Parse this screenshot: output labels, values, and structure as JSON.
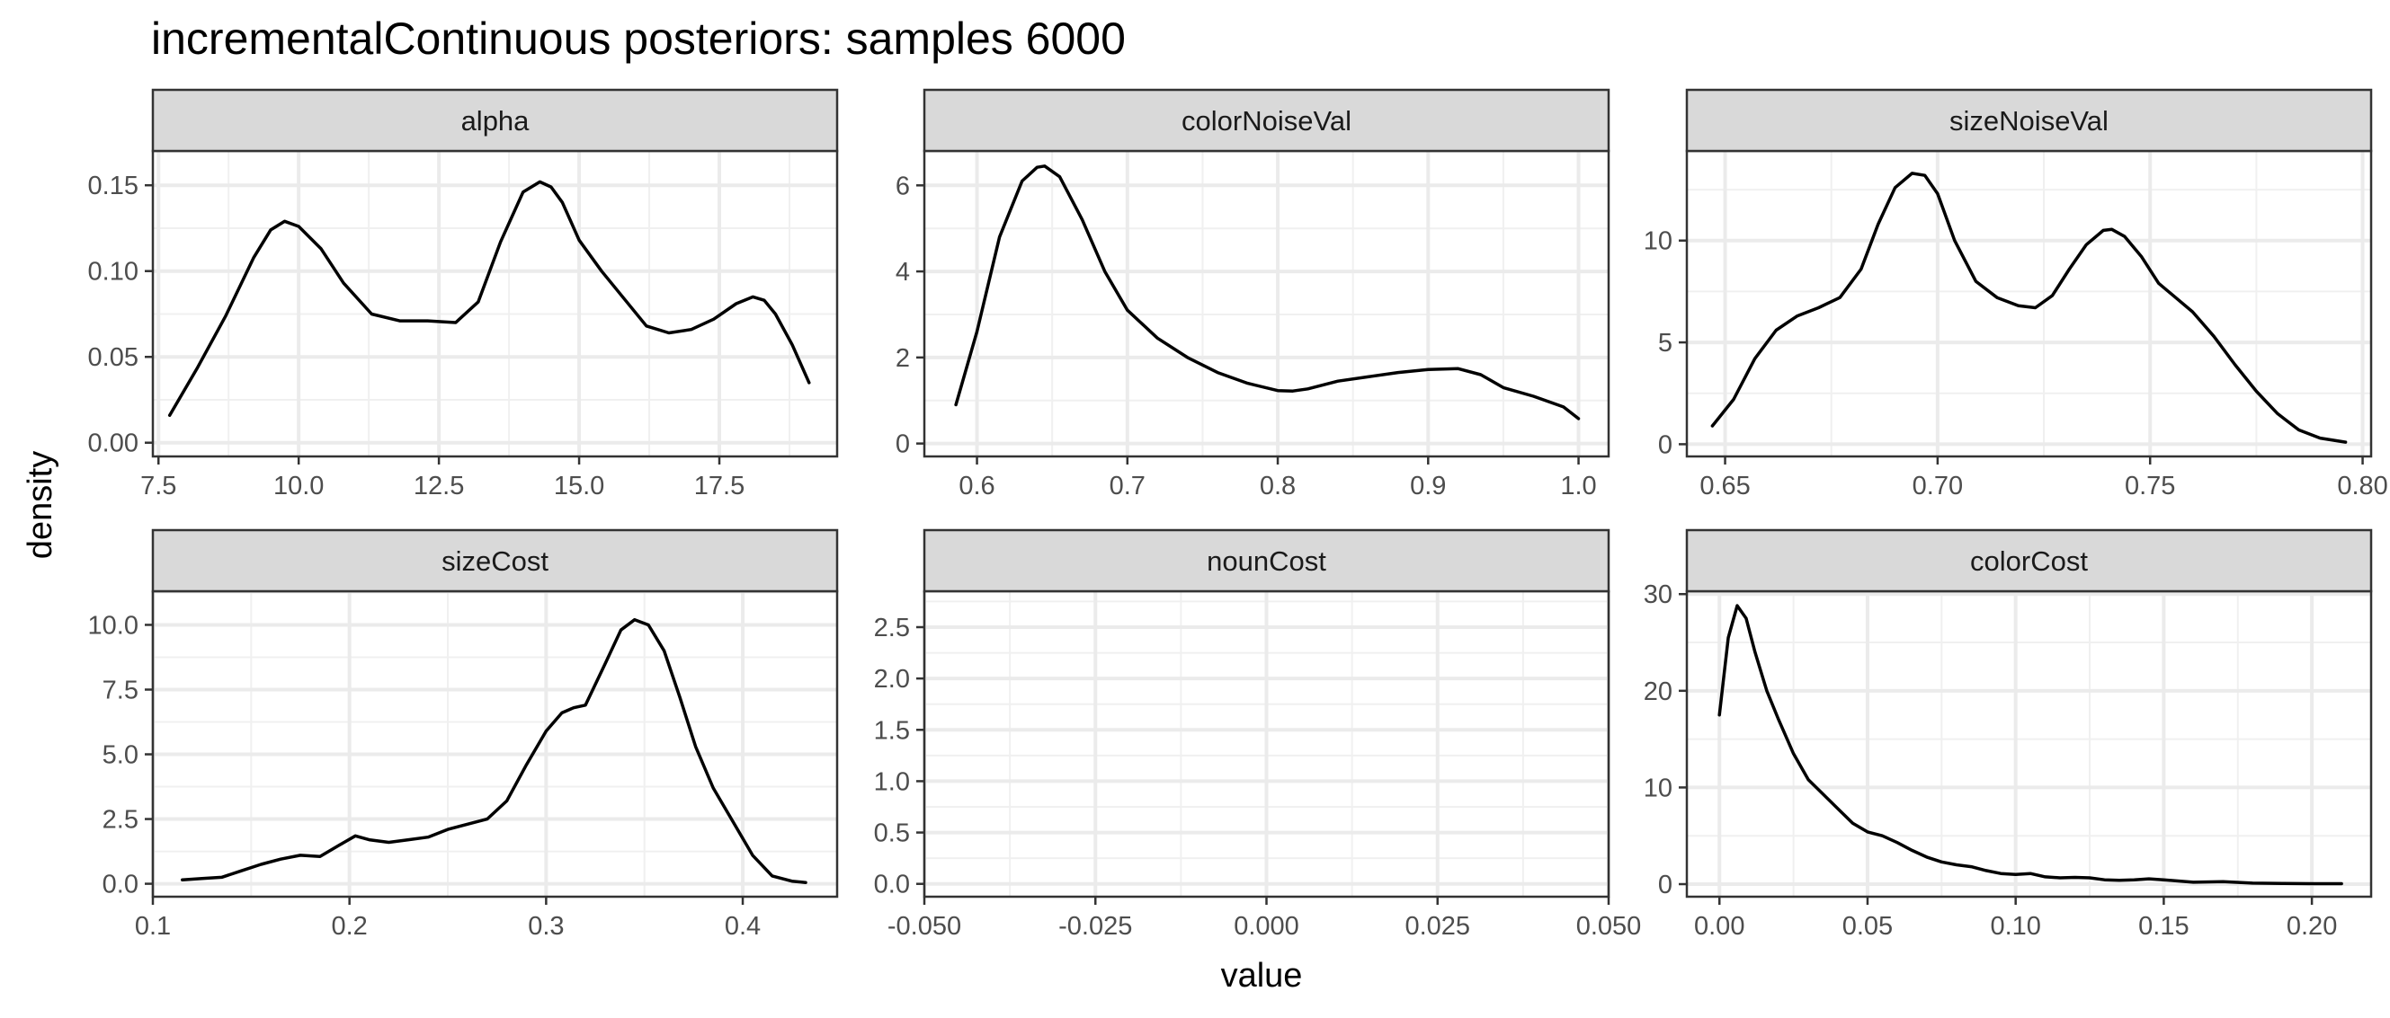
{
  "chart_data": {
    "type": "line",
    "title": "incrementalContinuous posteriors: samples 6000",
    "xlabel": "value",
    "ylabel": "density",
    "layout": "facet-grid 2x3, free scales",
    "grid": true,
    "line_color": "#000000",
    "panels": [
      {
        "name": "alpha",
        "xlim": [
          7.4,
          19.6
        ],
        "ylim": [
          -0.008,
          0.17
        ],
        "xticks": [
          7.5,
          10.0,
          12.5,
          15.0,
          17.5
        ],
        "xtick_labels": [
          "7.5",
          "10.0",
          "12.5",
          "15.0",
          "17.5"
        ],
        "yticks": [
          0.0,
          0.05,
          0.1,
          0.15
        ],
        "ytick_labels": [
          "0.00",
          "0.05",
          "0.10",
          "0.15"
        ],
        "x": [
          7.7,
          8.2,
          8.7,
          9.2,
          9.5,
          9.75,
          10.0,
          10.4,
          10.8,
          11.3,
          11.8,
          12.3,
          12.8,
          13.2,
          13.6,
          14.0,
          14.3,
          14.5,
          14.7,
          15.0,
          15.4,
          15.8,
          16.2,
          16.6,
          17.0,
          17.4,
          17.8,
          18.1,
          18.3,
          18.5,
          18.8,
          19.1
        ],
        "y": [
          0.016,
          0.044,
          0.074,
          0.108,
          0.124,
          0.129,
          0.126,
          0.113,
          0.093,
          0.075,
          0.071,
          0.071,
          0.07,
          0.082,
          0.117,
          0.146,
          0.152,
          0.149,
          0.14,
          0.118,
          0.1,
          0.084,
          0.068,
          0.064,
          0.066,
          0.072,
          0.081,
          0.085,
          0.083,
          0.075,
          0.057,
          0.035
        ]
      },
      {
        "name": "colorNoiseVal",
        "xlim": [
          0.565,
          1.02
        ],
        "ylim": [
          -0.3,
          6.8
        ],
        "xticks": [
          0.6,
          0.7,
          0.8,
          0.9,
          1.0
        ],
        "xtick_labels": [
          "0.6",
          "0.7",
          "0.8",
          "0.9",
          "1.0"
        ],
        "yticks": [
          0,
          2,
          4,
          6
        ],
        "ytick_labels": [
          "0",
          "2",
          "4",
          "6"
        ],
        "x": [
          0.586,
          0.6,
          0.615,
          0.63,
          0.64,
          0.645,
          0.655,
          0.67,
          0.685,
          0.7,
          0.72,
          0.74,
          0.76,
          0.78,
          0.8,
          0.81,
          0.82,
          0.84,
          0.86,
          0.88,
          0.9,
          0.92,
          0.935,
          0.95,
          0.97,
          0.99,
          1.0
        ],
        "y": [
          0.9,
          2.6,
          4.8,
          6.1,
          6.42,
          6.45,
          6.2,
          5.2,
          4.0,
          3.1,
          2.45,
          2.0,
          1.65,
          1.4,
          1.23,
          1.22,
          1.27,
          1.45,
          1.55,
          1.65,
          1.72,
          1.74,
          1.6,
          1.3,
          1.1,
          0.85,
          0.58
        ]
      },
      {
        "name": "sizeNoiseVal",
        "xlim": [
          0.641,
          0.802
        ],
        "ylim": [
          -0.6,
          14.4
        ],
        "xticks": [
          0.65,
          0.7,
          0.75,
          0.8
        ],
        "xtick_labels": [
          "0.65",
          "0.70",
          "0.75",
          "0.80"
        ],
        "yticks": [
          0,
          5,
          10
        ],
        "ytick_labels": [
          "0",
          "5",
          "10"
        ],
        "x": [
          0.647,
          0.652,
          0.657,
          0.662,
          0.667,
          0.672,
          0.677,
          0.682,
          0.686,
          0.69,
          0.694,
          0.697,
          0.7,
          0.704,
          0.709,
          0.714,
          0.719,
          0.723,
          0.727,
          0.731,
          0.735,
          0.739,
          0.741,
          0.744,
          0.748,
          0.752,
          0.756,
          0.76,
          0.765,
          0.77,
          0.775,
          0.78,
          0.785,
          0.79,
          0.796
        ],
        "y": [
          0.9,
          2.2,
          4.2,
          5.6,
          6.3,
          6.7,
          7.2,
          8.6,
          10.8,
          12.6,
          13.3,
          13.2,
          12.3,
          10.0,
          8.0,
          7.2,
          6.8,
          6.7,
          7.3,
          8.6,
          9.8,
          10.5,
          10.55,
          10.2,
          9.2,
          7.9,
          7.2,
          6.5,
          5.3,
          3.9,
          2.6,
          1.5,
          0.7,
          0.3,
          0.1
        ]
      },
      {
        "name": "sizeCost",
        "xlim": [
          0.1,
          0.448
        ],
        "ylim": [
          -0.5,
          11.3
        ],
        "xticks": [
          0.1,
          0.2,
          0.3,
          0.4
        ],
        "xtick_labels": [
          "0.1",
          "0.2",
          "0.3",
          "0.4"
        ],
        "yticks": [
          0.0,
          2.5,
          5.0,
          7.5,
          10.0
        ],
        "ytick_labels": [
          "0.0",
          "2.5",
          "5.0",
          "7.5",
          "10.0"
        ],
        "x": [
          0.115,
          0.125,
          0.135,
          0.145,
          0.155,
          0.165,
          0.175,
          0.185,
          0.195,
          0.203,
          0.21,
          0.22,
          0.23,
          0.24,
          0.25,
          0.26,
          0.27,
          0.28,
          0.29,
          0.3,
          0.308,
          0.314,
          0.32,
          0.33,
          0.338,
          0.345,
          0.352,
          0.36,
          0.368,
          0.376,
          0.385,
          0.395,
          0.405,
          0.415,
          0.425,
          0.432
        ],
        "y": [
          0.15,
          0.2,
          0.25,
          0.5,
          0.75,
          0.95,
          1.1,
          1.05,
          1.5,
          1.85,
          1.7,
          1.6,
          1.7,
          1.8,
          2.1,
          2.3,
          2.5,
          3.2,
          4.6,
          5.9,
          6.6,
          6.8,
          6.9,
          8.5,
          9.8,
          10.2,
          10.0,
          9.0,
          7.2,
          5.3,
          3.7,
          2.4,
          1.1,
          0.3,
          0.1,
          0.05
        ]
      },
      {
        "name": "nounCost",
        "xlim": [
          -0.05,
          0.05
        ],
        "ylim": [
          -0.125,
          2.85
        ],
        "xticks": [
          -0.05,
          -0.025,
          0.0,
          0.025,
          0.05
        ],
        "xtick_labels": [
          "-0.050",
          "-0.025",
          "0.000",
          "0.025",
          "0.050"
        ],
        "yticks": [
          0.0,
          0.5,
          1.0,
          1.5,
          2.0,
          2.5
        ],
        "ytick_labels": [
          "0.0",
          "0.5",
          "1.0",
          "1.5",
          "2.0",
          "2.5"
        ],
        "x": [],
        "y": []
      },
      {
        "name": "colorCost",
        "xlim": [
          -0.011,
          0.22
        ],
        "ylim": [
          -1.3,
          30.3
        ],
        "xticks": [
          0.0,
          0.05,
          0.1,
          0.15,
          0.2
        ],
        "xtick_labels": [
          "0.00",
          "0.05",
          "0.10",
          "0.15",
          "0.20"
        ],
        "yticks": [
          0,
          10,
          20,
          30
        ],
        "ytick_labels": [
          "0",
          "10",
          "20",
          "30"
        ],
        "x": [
          0.0,
          0.003,
          0.006,
          0.009,
          0.012,
          0.016,
          0.02,
          0.025,
          0.03,
          0.035,
          0.04,
          0.045,
          0.05,
          0.055,
          0.06,
          0.065,
          0.07,
          0.075,
          0.08,
          0.085,
          0.09,
          0.095,
          0.1,
          0.105,
          0.11,
          0.115,
          0.12,
          0.125,
          0.13,
          0.135,
          0.14,
          0.145,
          0.15,
          0.16,
          0.17,
          0.18,
          0.19,
          0.2,
          0.21
        ],
        "y": [
          17.5,
          25.5,
          28.8,
          27.5,
          24.0,
          20.0,
          17.0,
          13.5,
          10.8,
          9.3,
          7.8,
          6.3,
          5.4,
          5.0,
          4.3,
          3.5,
          2.8,
          2.3,
          2.0,
          1.8,
          1.4,
          1.1,
          1.0,
          1.1,
          0.75,
          0.65,
          0.7,
          0.65,
          0.45,
          0.4,
          0.45,
          0.55,
          0.45,
          0.2,
          0.25,
          0.1,
          0.08,
          0.05,
          0.05
        ]
      }
    ]
  }
}
